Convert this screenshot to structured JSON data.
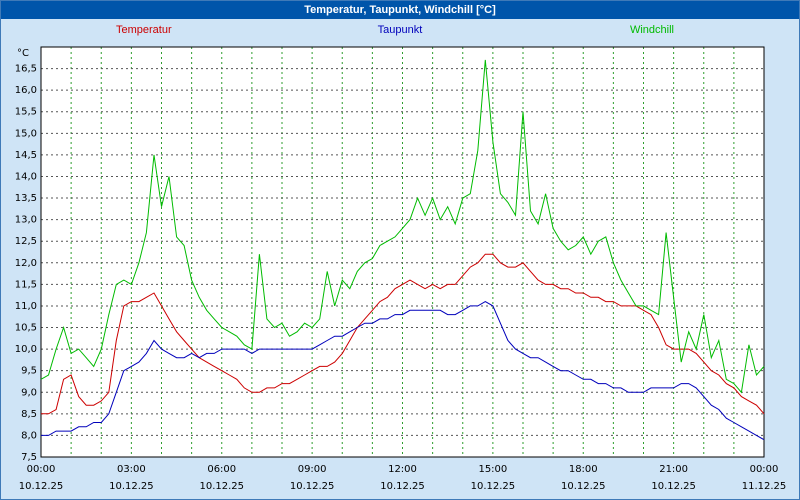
{
  "window": {
    "title": "Temperatur, Taupunkt, Windchill [°C]"
  },
  "colors": {
    "background": "#cfe4f6",
    "titlebar": "#0055aa",
    "titlebar_text": "#ffffff",
    "plot_background": "#ffffff",
    "plot_border": "#000000",
    "horizontal_grid": "#555555",
    "vertical_grid": "#2e9e2e",
    "temperatur": "#cc0000",
    "taupunkt": "#0000bb",
    "windchill": "#00bb00"
  },
  "chart_data": {
    "type": "line",
    "title": "Temperatur, Taupunkt, Windchill [°C]",
    "unit_label": "°C",
    "grid": {
      "horizontal": "dashed",
      "vertical": "dashed"
    },
    "legend_position": "top",
    "legend": [
      {
        "name": "Temperatur",
        "color": "#cc0000"
      },
      {
        "name": "Taupunkt",
        "color": "#0000bb"
      },
      {
        "name": "Windchill",
        "color": "#00bb00"
      }
    ],
    "x_axis": {
      "start_hour": 0,
      "end_hour": 24,
      "interval_minutes": 15,
      "major_tick_every_hours": 3,
      "minor_grid_every_hours": 1,
      "tick_labels": [
        "00:00",
        "03:00",
        "06:00",
        "09:00",
        "12:00",
        "15:00",
        "18:00",
        "21:00",
        "00:00"
      ],
      "date_labels": [
        "10.12.25",
        "10.12.25",
        "10.12.25",
        "10.12.25",
        "10.12.25",
        "10.12.25",
        "10.12.25",
        "10.12.25",
        "11.12.25"
      ]
    },
    "y_axis": {
      "min": 7.5,
      "max": 17.0,
      "tick_step": 0.5,
      "top_tick_value": 16.5,
      "tick_labels": [
        "16,5",
        "16,0",
        "15,5",
        "15,0",
        "14,5",
        "14,0",
        "13,5",
        "13,0",
        "12,5",
        "12,0",
        "11,5",
        "11,0",
        "10,5",
        "10,0",
        "9,5",
        "9,0",
        "8,5",
        "8,0",
        "7,5"
      ]
    },
    "series": [
      {
        "name": "Temperatur",
        "color": "#cc0000",
        "values": [
          8.5,
          8.5,
          8.6,
          9.3,
          9.4,
          8.9,
          8.7,
          8.7,
          8.8,
          9.0,
          10.2,
          11.0,
          11.1,
          11.1,
          11.2,
          11.3,
          11.0,
          10.7,
          10.4,
          10.2,
          10.0,
          9.8,
          9.7,
          9.6,
          9.5,
          9.4,
          9.3,
          9.1,
          9.0,
          9.0,
          9.1,
          9.1,
          9.2,
          9.2,
          9.3,
          9.4,
          9.5,
          9.6,
          9.6,
          9.7,
          9.9,
          10.2,
          10.5,
          10.7,
          10.9,
          11.1,
          11.2,
          11.4,
          11.5,
          11.6,
          11.5,
          11.4,
          11.5,
          11.4,
          11.5,
          11.5,
          11.7,
          11.9,
          12.0,
          12.2,
          12.2,
          12.0,
          11.9,
          11.9,
          12.0,
          11.8,
          11.6,
          11.5,
          11.5,
          11.4,
          11.4,
          11.3,
          11.3,
          11.2,
          11.2,
          11.1,
          11.1,
          11.0,
          11.0,
          11.0,
          10.9,
          10.8,
          10.5,
          10.1,
          10.0,
          10.0,
          10.0,
          9.9,
          9.7,
          9.5,
          9.4,
          9.2,
          9.1,
          8.9,
          8.8,
          8.7,
          8.5
        ]
      },
      {
        "name": "Taupunkt",
        "color": "#0000bb",
        "values": [
          8.0,
          8.0,
          8.1,
          8.1,
          8.1,
          8.2,
          8.2,
          8.3,
          8.3,
          8.5,
          9.0,
          9.5,
          9.6,
          9.7,
          9.9,
          10.2,
          10.0,
          9.9,
          9.8,
          9.8,
          9.9,
          9.8,
          9.9,
          9.9,
          10.0,
          10.0,
          10.0,
          10.0,
          9.9,
          10.0,
          10.0,
          10.0,
          10.0,
          10.0,
          10.0,
          10.0,
          10.0,
          10.1,
          10.2,
          10.3,
          10.3,
          10.4,
          10.5,
          10.6,
          10.6,
          10.7,
          10.7,
          10.8,
          10.8,
          10.9,
          10.9,
          10.9,
          10.9,
          10.9,
          10.8,
          10.8,
          10.9,
          11.0,
          11.0,
          11.1,
          11.0,
          10.6,
          10.2,
          10.0,
          9.9,
          9.8,
          9.8,
          9.7,
          9.6,
          9.5,
          9.5,
          9.4,
          9.3,
          9.3,
          9.2,
          9.2,
          9.1,
          9.1,
          9.0,
          9.0,
          9.0,
          9.1,
          9.1,
          9.1,
          9.1,
          9.2,
          9.2,
          9.1,
          8.9,
          8.7,
          8.6,
          8.4,
          8.3,
          8.2,
          8.1,
          8.0,
          7.9
        ]
      },
      {
        "name": "Windchill",
        "color": "#00bb00",
        "values": [
          9.3,
          9.4,
          10.0,
          10.5,
          9.9,
          10.0,
          9.8,
          9.6,
          10.0,
          10.8,
          11.5,
          11.6,
          11.5,
          12.0,
          12.7,
          14.5,
          13.3,
          14.0,
          12.6,
          12.4,
          11.6,
          11.2,
          10.9,
          10.7,
          10.5,
          10.4,
          10.3,
          10.1,
          10.0,
          12.2,
          10.7,
          10.5,
          10.6,
          10.3,
          10.4,
          10.6,
          10.5,
          10.7,
          11.8,
          11.0,
          11.6,
          11.4,
          11.8,
          12.0,
          12.1,
          12.4,
          12.5,
          12.6,
          12.8,
          13.0,
          13.5,
          13.1,
          13.5,
          13.0,
          13.3,
          12.9,
          13.5,
          13.6,
          14.6,
          16.7,
          14.8,
          13.6,
          13.4,
          13.1,
          15.5,
          13.2,
          12.9,
          13.6,
          12.8,
          12.5,
          12.3,
          12.4,
          12.6,
          12.2,
          12.5,
          12.6,
          12.0,
          11.6,
          11.3,
          11.0,
          11.0,
          10.9,
          10.8,
          12.7,
          11.2,
          9.7,
          10.4,
          10.0,
          10.8,
          9.8,
          10.2,
          9.3,
          9.2,
          9.0,
          10.1,
          9.4,
          9.6
        ]
      }
    ]
  }
}
